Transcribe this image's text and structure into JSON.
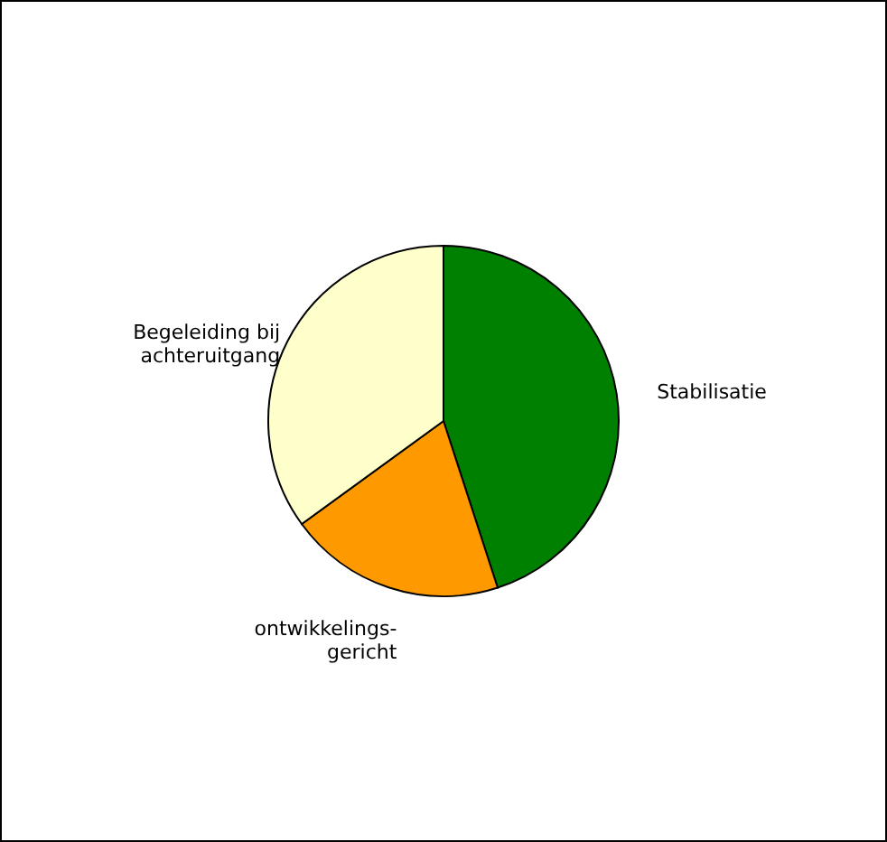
{
  "chart_data": {
    "type": "pie",
    "categories": [
      "Stabilisatie",
      "ontwikkelings-\ngericht",
      "Begeleiding bij\nachteruitgang"
    ],
    "values": [
      45,
      20,
      35
    ],
    "colors": [
      "#008000",
      "#ff9900",
      "#ffffcc"
    ],
    "legend": false
  }
}
